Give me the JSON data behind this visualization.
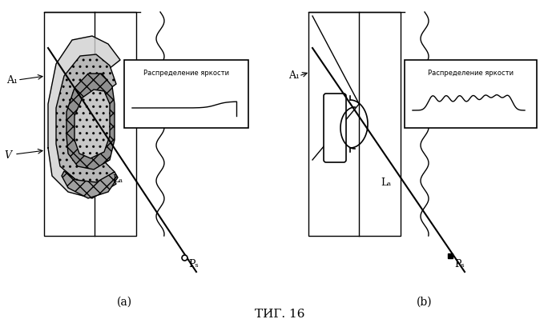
{
  "title": "ΤИГ. 16",
  "panel_a_label": "(a)",
  "panel_b_label": "(b)",
  "label_A1": "A₁",
  "label_V": "V",
  "label_La": "Lₐ",
  "label_Ps": "Pₛ",
  "box_title": "Распределение яркости",
  "bg_color": "#ffffff",
  "line_color": "#000000"
}
